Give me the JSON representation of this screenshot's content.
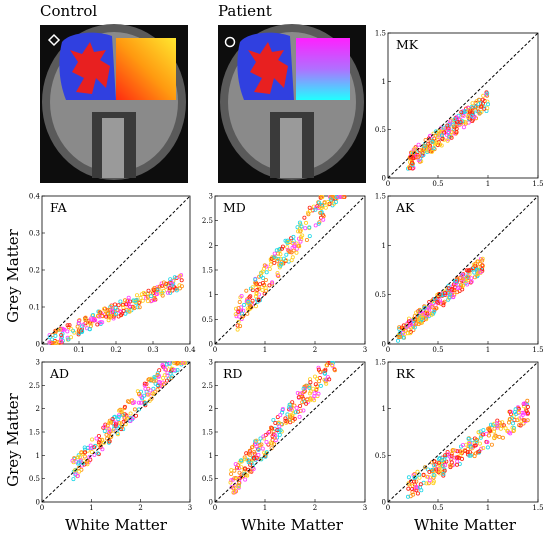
{
  "figure": {
    "control_label": "Control",
    "patient_label": "Patient",
    "ylabel": "Grey Matter",
    "xlabel": "White Matter"
  },
  "colors": {
    "control_grad": [
      "#ffe830",
      "#ff9a10",
      "#ff2a10"
    ],
    "patient_grad": [
      "#ff20ff",
      "#b070ff",
      "#20ffff"
    ],
    "mask_blue": "#3040e0",
    "mask_red": "#e82020",
    "series_pink": "#ff40ff",
    "series_cyan": "#20d8e8",
    "series_yellow": "#ffd020",
    "series_orange": "#ff8c10",
    "series_red": "#ff2010"
  },
  "chart_data": [
    {
      "type": "scatter",
      "title": "MK",
      "xlim": [
        0,
        1.5
      ],
      "ylim": [
        0,
        1.5
      ],
      "xticks": [
        "0",
        "0.5",
        "1",
        "1.5"
      ],
      "yticks": [
        "0",
        "0.5",
        "1",
        "1.5"
      ],
      "identity_line": true,
      "slope": 0.8,
      "spread": 0.1,
      "seed": 11,
      "xc": [
        0.2,
        1.0
      ]
    },
    {
      "type": "scatter",
      "title": "FA",
      "xlim": [
        0,
        0.4
      ],
      "ylim": [
        0,
        0.4
      ],
      "xticks": [
        "0",
        "0.1",
        "0.2",
        "0.3",
        "0.4"
      ],
      "yticks": [
        "0",
        "0.1",
        "0.2",
        "0.3",
        "0.4"
      ],
      "identity_line": true,
      "slope": 0.45,
      "spread": 0.02,
      "seed": 22,
      "xc": [
        0.02,
        0.38
      ]
    },
    {
      "type": "scatter",
      "title": "MD",
      "xlim": [
        0,
        3
      ],
      "ylim": [
        0,
        3
      ],
      "xticks": [
        "0",
        "1",
        "2",
        "3"
      ],
      "yticks": [
        "0",
        "0.5",
        "1",
        "1.5",
        "2",
        "2.5",
        "3"
      ],
      "identity_line": true,
      "slope": 1.3,
      "spread": 0.3,
      "seed": 33,
      "xc": [
        0.4,
        2.6
      ]
    },
    {
      "type": "scatter",
      "title": "AK",
      "xlim": [
        0,
        1.5
      ],
      "ylim": [
        0,
        1.5
      ],
      "xticks": [
        "0",
        "0.5",
        "1",
        "1.5"
      ],
      "yticks": [
        "0",
        "0.5",
        "1",
        "1.5"
      ],
      "identity_line": true,
      "slope": 0.85,
      "spread": 0.08,
      "seed": 44,
      "xc": [
        0.1,
        0.95
      ]
    },
    {
      "type": "scatter",
      "title": "AD",
      "xlim": [
        0,
        3
      ],
      "ylim": [
        0,
        3
      ],
      "xticks": [
        "0",
        "1",
        "2",
        "3"
      ],
      "yticks": [
        "0",
        "0.5",
        "1",
        "1.5",
        "2",
        "2.5",
        "3"
      ],
      "identity_line": true,
      "slope": 1.1,
      "spread": 0.25,
      "seed": 55,
      "xc": [
        0.6,
        2.9
      ]
    },
    {
      "type": "scatter",
      "title": "RD",
      "xlim": [
        0,
        3
      ],
      "ylim": [
        0,
        3
      ],
      "xticks": [
        "0",
        "1",
        "2",
        "3"
      ],
      "yticks": [
        "0",
        "0.5",
        "1",
        "1.5",
        "2",
        "2.5",
        "3"
      ],
      "identity_line": true,
      "slope": 1.25,
      "spread": 0.3,
      "seed": 66,
      "xc": [
        0.3,
        2.4
      ]
    },
    {
      "type": "scatter",
      "title": "RK",
      "xlim": [
        0,
        1.5
      ],
      "ylim": [
        0,
        1.5
      ],
      "xticks": [
        "0",
        "0.5",
        "1",
        "1.5"
      ],
      "yticks": [
        "0",
        "0.5",
        "1",
        "1.5"
      ],
      "identity_line": true,
      "slope": 0.7,
      "spread": 0.12,
      "seed": 77,
      "xc": [
        0.2,
        1.4
      ]
    }
  ]
}
